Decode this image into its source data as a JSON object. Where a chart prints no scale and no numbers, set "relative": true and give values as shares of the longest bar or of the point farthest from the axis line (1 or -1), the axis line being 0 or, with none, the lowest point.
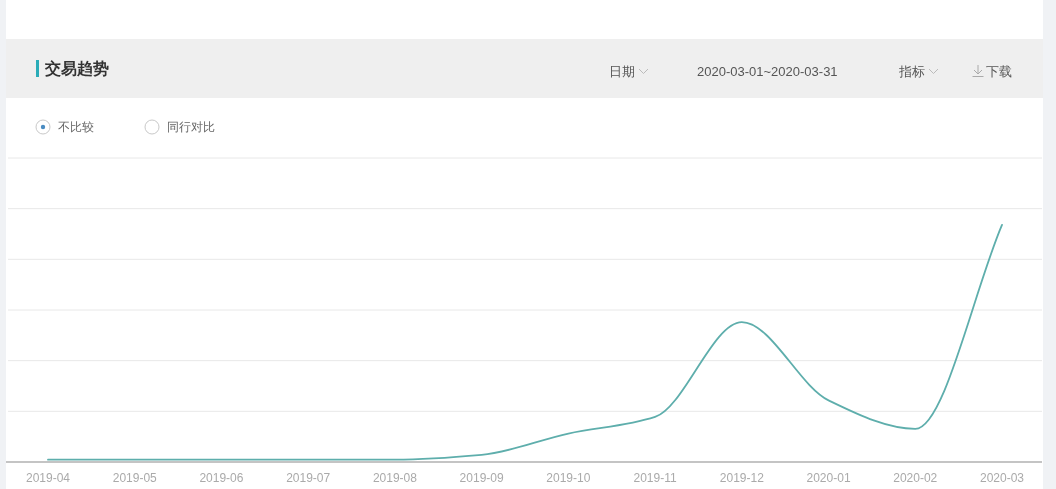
{
  "chart_data": {
    "type": "line",
    "title": "交易趋势",
    "categories": [
      "2019-04",
      "2019-05",
      "2019-06",
      "2019-07",
      "2019-08",
      "2019-09",
      "2019-10",
      "2019-11",
      "2019-12",
      "2020-01",
      "2020-02",
      "2020-03"
    ],
    "series": [
      {
        "color": "#5eaeac",
        "values": [
          0.01,
          0.01,
          0.01,
          0.01,
          0.01,
          0.03,
          0.12,
          0.19,
          0.59,
          0.26,
          0.14,
          1
        ]
      }
    ],
    "relative": true,
    "grid": "y",
    "annotations": [
      "日期",
      "2020-03-01~2020-03-31",
      "指标",
      "下载",
      "不比较",
      "同行对比"
    ]
  }
}
